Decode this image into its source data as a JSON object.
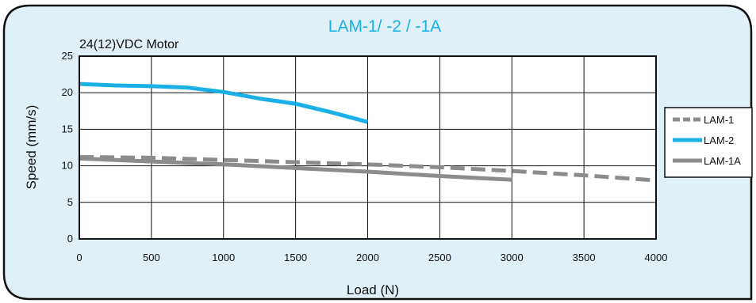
{
  "chart_data": {
    "type": "line",
    "title": "LAM-1/ -2 / -1A",
    "subtitle": "24(12)VDC Motor",
    "xlabel": "Load (N)",
    "ylabel": "Speed (mm/s)",
    "xlim": [
      0,
      4000
    ],
    "ylim": [
      0,
      25
    ],
    "x_ticks": [
      "0",
      "500",
      "1000",
      "1500",
      "2000",
      "2500",
      "3000",
      "3500",
      "4000"
    ],
    "y_ticks": [
      "0",
      "5",
      "10",
      "15",
      "20",
      "25"
    ],
    "grid": true,
    "legend_position": "right",
    "series": [
      {
        "name": "LAM-1",
        "color": "#8c8c8c",
        "style": "dashed",
        "points": [
          [
            0,
            11.2
          ],
          [
            500,
            11.1
          ],
          [
            1000,
            10.8
          ],
          [
            1500,
            10.5
          ],
          [
            2000,
            10.2
          ],
          [
            2500,
            9.8
          ],
          [
            3000,
            9.3
          ],
          [
            3500,
            8.7
          ],
          [
            4000,
            8.0
          ]
        ]
      },
      {
        "name": "LAM-2",
        "color": "#1ab0e6",
        "style": "solid",
        "points": [
          [
            0,
            21.2
          ],
          [
            250,
            21.0
          ],
          [
            500,
            20.9
          ],
          [
            750,
            20.7
          ],
          [
            1000,
            20.1
          ],
          [
            1250,
            19.2
          ],
          [
            1500,
            18.5
          ],
          [
            1750,
            17.3
          ],
          [
            2000,
            16.0
          ]
        ]
      },
      {
        "name": "LAM-1A",
        "color": "#8c8c8c",
        "style": "solid",
        "points": [
          [
            0,
            11.0
          ],
          [
            500,
            10.6
          ],
          [
            1000,
            10.2
          ],
          [
            1500,
            9.7
          ],
          [
            2000,
            9.2
          ],
          [
            2500,
            8.6
          ],
          [
            3000,
            8.1
          ]
        ]
      }
    ]
  },
  "colors": {
    "panel_background": "#dff0f8",
    "panel_border": "#111111",
    "plot_background": "#ffffff",
    "grid": "#111111",
    "title": "#1ab0e6"
  }
}
